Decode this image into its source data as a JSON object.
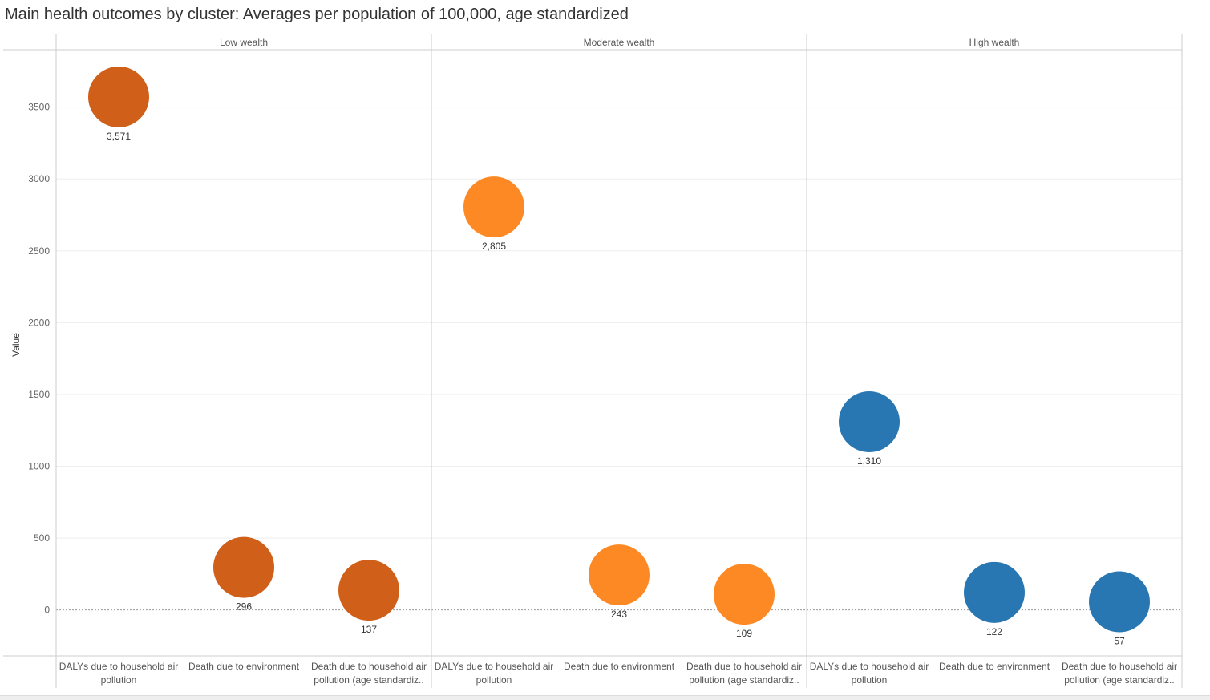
{
  "title": "Main health outcomes by cluster: Averages per population of 100,000, age standardized",
  "chart_data": {
    "type": "scatter",
    "title": "Main health outcomes by cluster: Averages per population of 100,000, age standardized",
    "ylabel": "Value",
    "ylim": [
      -320,
      3900
    ],
    "yticks": [
      0,
      500,
      1000,
      1500,
      2000,
      2500,
      3000,
      3500
    ],
    "grid": true,
    "panels": [
      {
        "label": "Low wealth",
        "color": "#cf5f19",
        "points": [
          {
            "category": [
              "DALYs due to household air",
              "pollution"
            ],
            "value": 3571,
            "label": "3,571"
          },
          {
            "category": [
              "Death due to environment"
            ],
            "value": 296,
            "label": "296"
          },
          {
            "category": [
              "Death due to household air",
              "pollution (age standardiz.."
            ],
            "value": 137,
            "label": "137"
          }
        ]
      },
      {
        "label": "Moderate wealth",
        "color": "#fd8924",
        "points": [
          {
            "category": [
              "DALYs due to household air",
              "pollution"
            ],
            "value": 2805,
            "label": "2,805"
          },
          {
            "category": [
              "Death due to environment"
            ],
            "value": 243,
            "label": "243"
          },
          {
            "category": [
              "Death due to household air",
              "pollution (age standardiz.."
            ],
            "value": 109,
            "label": "109"
          }
        ]
      },
      {
        "label": "High wealth",
        "color": "#2877b3",
        "points": [
          {
            "category": [
              "DALYs due to household air",
              "pollution"
            ],
            "value": 1310,
            "label": "1,310"
          },
          {
            "category": [
              "Death due to environment"
            ],
            "value": 122,
            "label": "122"
          },
          {
            "category": [
              "Death due to household air",
              "pollution (age standardiz.."
            ],
            "value": 57,
            "label": "57"
          }
        ]
      }
    ]
  }
}
